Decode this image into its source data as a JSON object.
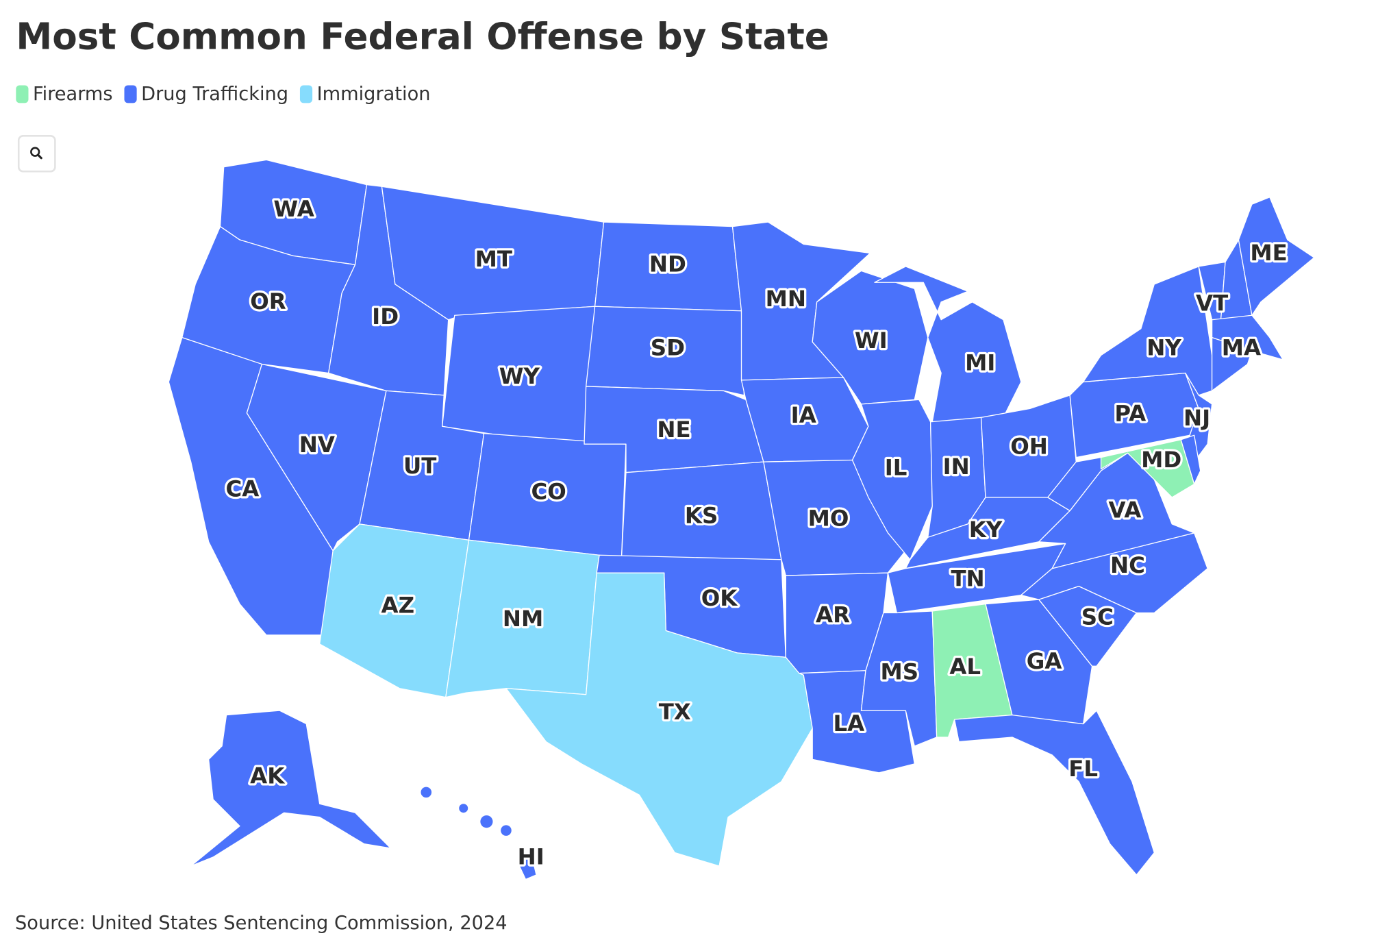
{
  "title": "Most Common Federal Offense by State",
  "legend": [
    {
      "name": "Firearms",
      "color": "#8ef0b4"
    },
    {
      "name": "Drug Trafficking",
      "color": "#4a72fb"
    },
    {
      "name": "Immigration",
      "color": "#86dcfd"
    }
  ],
  "states": [
    {
      "label": "WA",
      "offense": "Drug Trafficking"
    },
    {
      "label": "OR",
      "offense": "Drug Trafficking"
    },
    {
      "label": "CA",
      "offense": "Drug Trafficking"
    },
    {
      "label": "NV",
      "offense": "Drug Trafficking"
    },
    {
      "label": "ID",
      "offense": "Drug Trafficking"
    },
    {
      "label": "MT",
      "offense": "Drug Trafficking"
    },
    {
      "label": "WY",
      "offense": "Drug Trafficking"
    },
    {
      "label": "UT",
      "offense": "Drug Trafficking"
    },
    {
      "label": "CO",
      "offense": "Drug Trafficking"
    },
    {
      "label": "AZ",
      "offense": "Immigration"
    },
    {
      "label": "NM",
      "offense": "Immigration"
    },
    {
      "label": "ND",
      "offense": "Drug Trafficking"
    },
    {
      "label": "SD",
      "offense": "Drug Trafficking"
    },
    {
      "label": "NE",
      "offense": "Drug Trafficking"
    },
    {
      "label": "KS",
      "offense": "Drug Trafficking"
    },
    {
      "label": "OK",
      "offense": "Drug Trafficking"
    },
    {
      "label": "TX",
      "offense": "Immigration"
    },
    {
      "label": "MN",
      "offense": "Drug Trafficking"
    },
    {
      "label": "IA",
      "offense": "Drug Trafficking"
    },
    {
      "label": "MO",
      "offense": "Drug Trafficking"
    },
    {
      "label": "AR",
      "offense": "Drug Trafficking"
    },
    {
      "label": "LA",
      "offense": "Drug Trafficking"
    },
    {
      "label": "WI",
      "offense": "Drug Trafficking"
    },
    {
      "label": "IL",
      "offense": "Drug Trafficking"
    },
    {
      "label": "MI",
      "offense": "Drug Trafficking"
    },
    {
      "label": "IN",
      "offense": "Drug Trafficking"
    },
    {
      "label": "OH",
      "offense": "Drug Trafficking"
    },
    {
      "label": "KY",
      "offense": "Drug Trafficking"
    },
    {
      "label": "TN",
      "offense": "Drug Trafficking"
    },
    {
      "label": "MS",
      "offense": "Drug Trafficking"
    },
    {
      "label": "AL",
      "offense": "Firearms"
    },
    {
      "label": "GA",
      "offense": "Drug Trafficking"
    },
    {
      "label": "FL",
      "offense": "Drug Trafficking"
    },
    {
      "label": "SC",
      "offense": "Drug Trafficking"
    },
    {
      "label": "NC",
      "offense": "Drug Trafficking"
    },
    {
      "label": "VA",
      "offense": "Drug Trafficking"
    },
    {
      "label": null,
      "offense": "Drug Trafficking"
    },
    {
      "label": "PA",
      "offense": "Drug Trafficking"
    },
    {
      "label": "NY",
      "offense": "Drug Trafficking"
    },
    {
      "label": "VT",
      "offense": "Drug Trafficking"
    },
    {
      "label": null,
      "offense": "Drug Trafficking"
    },
    {
      "label": "ME",
      "offense": "Drug Trafficking"
    },
    {
      "label": "MA",
      "offense": "Drug Trafficking"
    },
    {
      "label": null,
      "offense": "Drug Trafficking"
    },
    {
      "label": "NJ",
      "offense": "Drug Trafficking"
    },
    {
      "label": "MD",
      "offense": "Firearms"
    },
    {
      "label": null,
      "offense": "Drug Trafficking"
    },
    {
      "label": "AK",
      "offense": "Drug Trafficking"
    },
    {
      "label": "HI",
      "offense": "Drug Trafficking"
    }
  ],
  "source": "Source: United States Sentencing Commission, 2024"
}
